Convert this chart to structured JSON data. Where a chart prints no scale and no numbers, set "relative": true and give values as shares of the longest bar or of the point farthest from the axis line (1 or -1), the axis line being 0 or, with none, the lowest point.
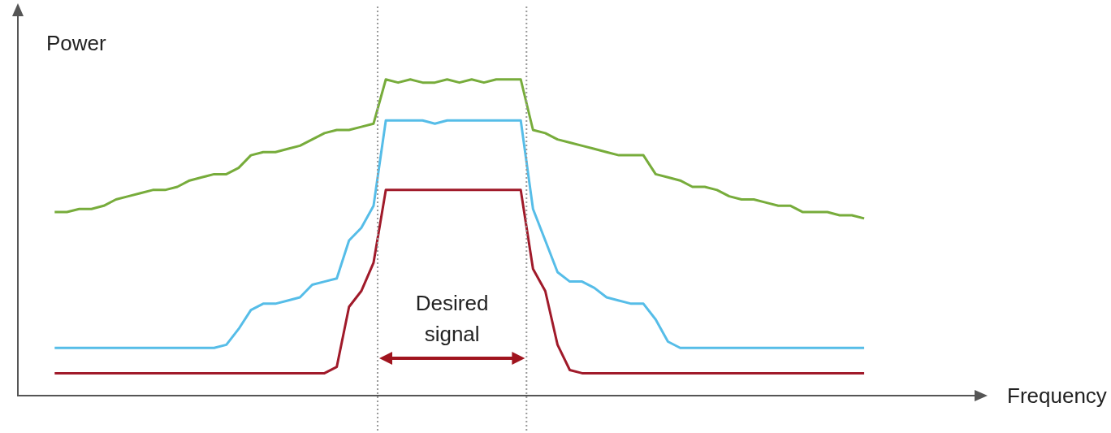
{
  "chart_data": {
    "type": "line",
    "relative": true,
    "xlabel": "Frequency",
    "ylabel": "Power",
    "categories": [
      null,
      null,
      null,
      null,
      null,
      null,
      null,
      null,
      null,
      null,
      null,
      null,
      null,
      null,
      null,
      null,
      null,
      null,
      null,
      null,
      null,
      null,
      null,
      null,
      null,
      null,
      null,
      null,
      null,
      null,
      null,
      null,
      null,
      null,
      null,
      null,
      null,
      null,
      null,
      null,
      null,
      null,
      null,
      null,
      null,
      null,
      null,
      null,
      null,
      null,
      null,
      null,
      null,
      null,
      null,
      null,
      null,
      null,
      null,
      null,
      null,
      null,
      null,
      null,
      null,
      null,
      null,
      null,
      null,
      null,
      null,
      null,
      null,
      null,
      null,
      null,
      null,
      null,
      null
    ],
    "series": [
      {
        "color": "#77ac3b",
        "values": [
          null,
          null,
          null,
          0.58,
          0.58,
          0.59,
          0.59,
          0.6,
          0.62,
          0.63,
          0.64,
          0.65,
          0.65,
          0.66,
          0.68,
          0.69,
          0.7,
          0.7,
          0.72,
          0.76,
          0.77,
          0.77,
          0.78,
          0.79,
          0.81,
          0.83,
          0.84,
          0.84,
          0.85,
          0.86,
          1,
          0.99,
          1,
          0.99,
          0.99,
          1,
          0.99,
          1,
          0.99,
          1,
          1,
          1,
          0.84,
          0.83,
          0.81,
          0.8,
          0.79,
          0.78,
          0.77,
          0.76,
          0.76,
          0.76,
          0.7,
          0.69,
          0.68,
          0.66,
          0.66,
          0.65,
          0.63,
          0.62,
          0.62,
          0.61,
          0.6,
          0.6,
          0.58,
          0.58,
          0.58,
          0.57,
          0.57,
          0.56,
          null,
          null,
          null,
          null,
          null,
          null,
          null,
          null,
          null
        ]
      },
      {
        "color": "#56bde8",
        "values": [
          null,
          null,
          null,
          0.15,
          0.15,
          0.15,
          0.15,
          0.15,
          0.15,
          0.15,
          0.15,
          0.15,
          0.15,
          0.15,
          0.15,
          0.15,
          0.15,
          0.16,
          0.21,
          0.27,
          0.29,
          0.29,
          0.3,
          0.31,
          0.35,
          0.36,
          0.37,
          0.49,
          0.53,
          0.6,
          0.87,
          0.87,
          0.87,
          0.87,
          0.86,
          0.87,
          0.87,
          0.87,
          0.87,
          0.87,
          0.87,
          0.87,
          0.59,
          0.49,
          0.39,
          0.36,
          0.36,
          0.34,
          0.31,
          0.3,
          0.29,
          0.29,
          0.24,
          0.17,
          0.15,
          0.15,
          0.15,
          0.15,
          0.15,
          0.15,
          0.15,
          0.15,
          0.15,
          0.15,
          0.15,
          0.15,
          0.15,
          0.15,
          0.15,
          0.15,
          null,
          null,
          null,
          null,
          null,
          null,
          null,
          null,
          null
        ]
      },
      {
        "color": "#a01a2a",
        "values": [
          null,
          null,
          null,
          0.07,
          0.07,
          0.07,
          0.07,
          0.07,
          0.07,
          0.07,
          0.07,
          0.07,
          0.07,
          0.07,
          0.07,
          0.07,
          0.07,
          0.07,
          0.07,
          0.07,
          0.07,
          0.07,
          0.07,
          0.07,
          0.07,
          0.07,
          0.09,
          0.28,
          0.33,
          0.42,
          0.65,
          0.65,
          0.65,
          0.65,
          0.65,
          0.65,
          0.65,
          0.65,
          0.65,
          0.65,
          0.65,
          0.65,
          0.4,
          0.33,
          0.16,
          0.08,
          0.07,
          0.07,
          0.07,
          0.07,
          0.07,
          0.07,
          0.07,
          0.07,
          0.07,
          0.07,
          0.07,
          0.07,
          0.07,
          0.07,
          0.07,
          0.07,
          0.07,
          0.07,
          0.07,
          0.07,
          0.07,
          0.07,
          0.07,
          0.07,
          null,
          null,
          null,
          null,
          null,
          null,
          null,
          null,
          null
        ]
      }
    ],
    "annotations": [
      "Desired signal"
    ],
    "grid": false,
    "legend": false,
    "marker": "none",
    "line_style": "solid"
  }
}
